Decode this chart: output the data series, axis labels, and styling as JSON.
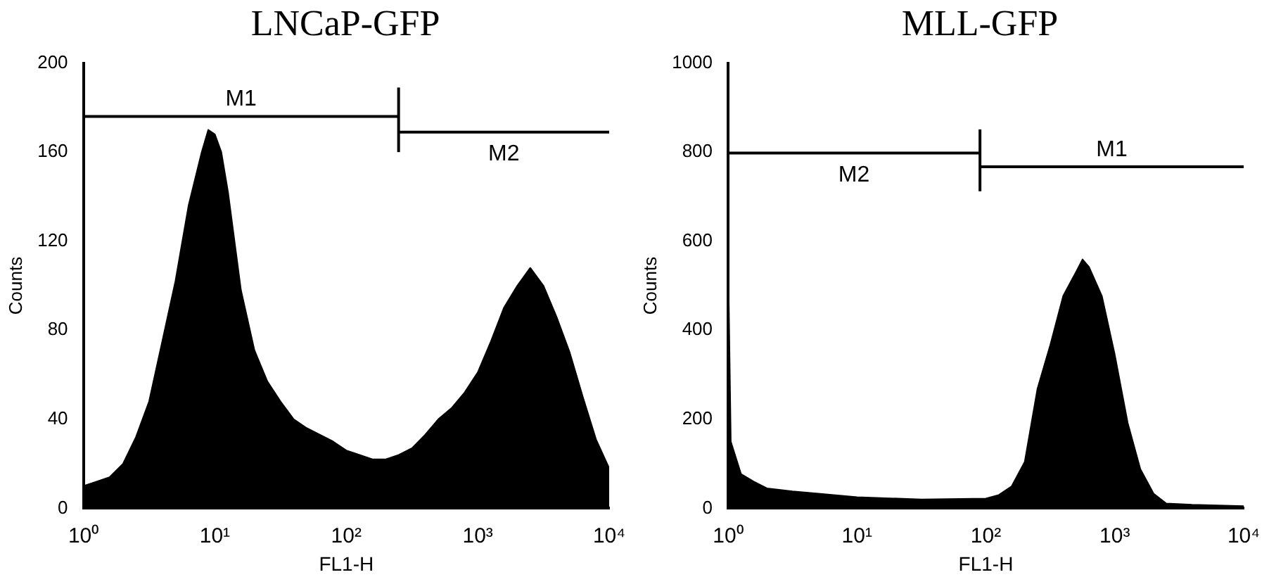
{
  "chart_data": [
    {
      "type": "area",
      "title": "LNCaP-GFP",
      "xlabel": "FL1-H",
      "ylabel": "Counts",
      "log": "x",
      "grid": false,
      "legend": false,
      "xlim": [
        1,
        10000
      ],
      "xticks": [
        {
          "value": 1,
          "label": "10⁰"
        },
        {
          "value": 10,
          "label": "10¹"
        },
        {
          "value": 100,
          "label": "10²"
        },
        {
          "value": 1000,
          "label": "10³"
        },
        {
          "value": 10000,
          "label": "10⁴"
        }
      ],
      "ylim": [
        0,
        200
      ],
      "yticks": [
        0,
        40,
        80,
        120,
        160,
        200
      ],
      "x": [
        1,
        1.26,
        1.58,
        2,
        2.51,
        3.16,
        3.98,
        5.01,
        6.31,
        7.94,
        8.91,
        10,
        11.2,
        12.6,
        15.8,
        20,
        25.1,
        31.6,
        39.8,
        50.1,
        63.1,
        79.4,
        100,
        126,
        158,
        200,
        251,
        316,
        398,
        501,
        631,
        794,
        1000,
        1260,
        1580,
        2000,
        2510,
        3160,
        3980,
        5010,
        6310,
        7940,
        10000
      ],
      "series": [
        {
          "color": "#000000",
          "values": [
            10,
            12,
            14,
            20,
            32,
            48,
            75,
            102,
            136,
            160,
            170,
            168,
            160,
            142,
            98,
            71,
            57,
            48,
            40,
            36,
            33,
            30,
            26,
            24,
            22,
            22,
            24,
            27,
            33,
            40,
            45,
            52,
            61,
            75,
            90,
            100,
            108,
            100,
            86,
            70,
            50,
            31,
            18
          ]
        },
        {
          "type": "line",
          "name": "M1",
          "color": "#000000",
          "x": [
            1,
            250
          ],
          "values": [
            176,
            176
          ],
          "errors": [
            null,
            [
              160,
              189
            ]
          ]
        },
        {
          "type": "line",
          "name": "M2",
          "color": "#000000",
          "x": [
            250,
            10000
          ],
          "values": [
            169,
            169
          ]
        }
      ]
    },
    {
      "type": "area",
      "title": "MLL-GFP",
      "xlabel": "FL1-H",
      "ylabel": "Counts",
      "log": "x",
      "grid": false,
      "legend": false,
      "xlim": [
        1,
        10000
      ],
      "xticks": [
        {
          "value": 1,
          "label": "10⁰"
        },
        {
          "value": 10,
          "label": "10¹"
        },
        {
          "value": 100,
          "label": "10²"
        },
        {
          "value": 1000,
          "label": "10³"
        },
        {
          "value": 10000,
          "label": "10⁴"
        }
      ],
      "ylim": [
        0,
        1000
      ],
      "yticks": [
        0,
        200,
        400,
        600,
        800,
        1000
      ],
      "x": [
        1,
        1.05,
        1.26,
        1.58,
        2,
        3.16,
        5.01,
        10,
        31.6,
        100,
        126,
        158,
        200,
        251,
        316,
        398,
        501,
        562,
        631,
        794,
        1000,
        1260,
        1580,
        2000,
        2510,
        3980,
        10000
      ],
      "series": [
        {
          "color": "#000000",
          "values": [
            570,
            150,
            77,
            60,
            45,
            38,
            33,
            25,
            20,
            22,
            30,
            49,
            104,
            268,
            367,
            477,
            531,
            559,
            542,
            477,
            345,
            192,
            88,
            33,
            11,
            8,
            5
          ]
        },
        {
          "type": "line",
          "name": "M2",
          "color": "#000000",
          "x": [
            1,
            90
          ],
          "values": [
            798,
            798
          ],
          "errors": [
            null,
            [
              712,
              851
            ]
          ]
        },
        {
          "type": "line",
          "name": "M1",
          "color": "#000000",
          "x": [
            90,
            10000
          ],
          "values": [
            767,
            767
          ]
        }
      ]
    }
  ]
}
